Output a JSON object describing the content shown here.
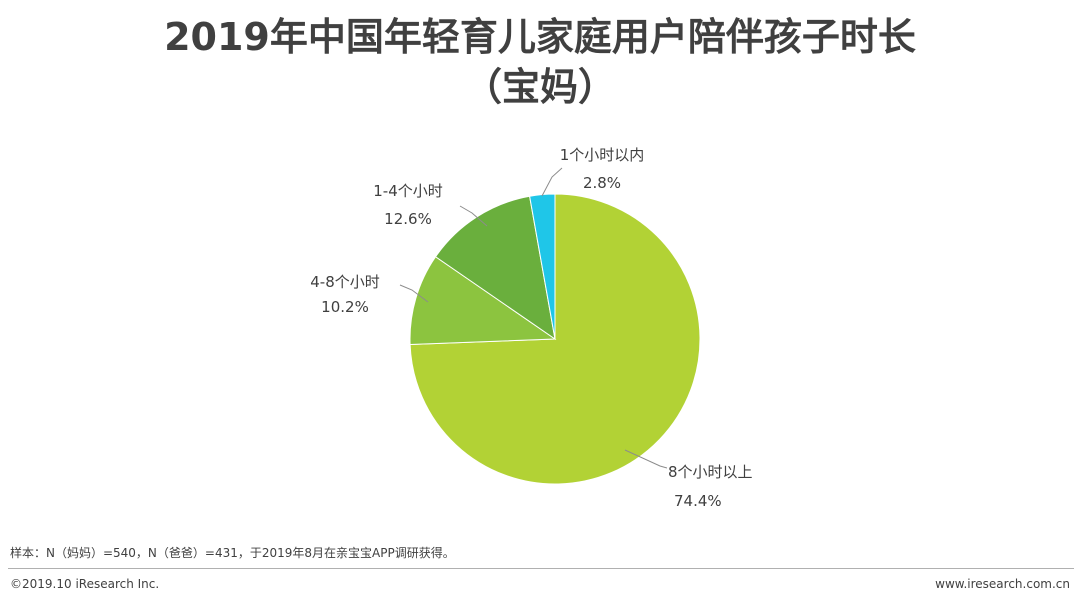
{
  "title": {
    "line1": "2019年中国年轻育儿家庭用户陪伴孩子时长",
    "line2": "（宝妈）"
  },
  "chart_data": {
    "type": "pie",
    "slices": [
      {
        "label": "8个小时以上",
        "value": 74.4,
        "value_label": "74.4%",
        "color": "#b2d235"
      },
      {
        "label": "4-8个小时",
        "value": 10.2,
        "value_label": "10.2%",
        "color": "#8cc43f"
      },
      {
        "label": "1-4个小时",
        "value": 12.6,
        "value_label": "12.6%",
        "color": "#6aaf3d"
      },
      {
        "label": "1个小时以内",
        "value": 2.8,
        "value_label": "2.8%",
        "color": "#1fc6e8"
      }
    ]
  },
  "footnote": "样本：N（妈妈）=540，N（爸爸）=431，于2019年8月在亲宝宝APP调研获得。",
  "footer": {
    "copyright": "©2019.10 iResearch Inc.",
    "website": "www.iresearch.com.cn"
  }
}
